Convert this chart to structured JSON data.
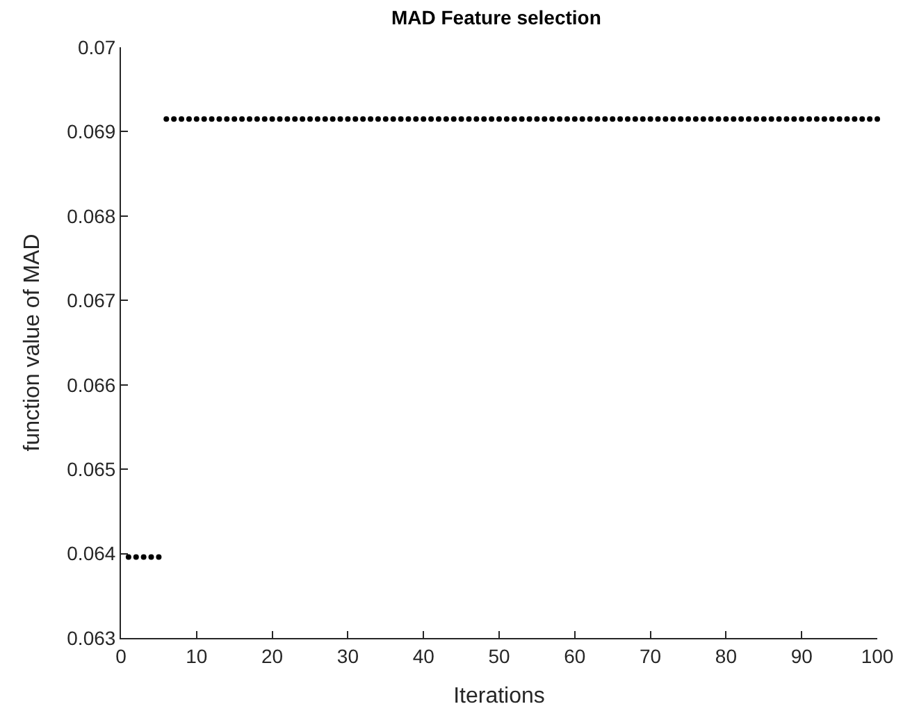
{
  "chart_data": {
    "type": "scatter",
    "title": "MAD Feature selection",
    "xlabel": "Iterations",
    "ylabel": "function value of MAD",
    "x": [
      1,
      2,
      3,
      4,
      5,
      6,
      7,
      8,
      9,
      10,
      11,
      12,
      13,
      14,
      15,
      16,
      17,
      18,
      19,
      20,
      21,
      22,
      23,
      24,
      25,
      26,
      27,
      28,
      29,
      30,
      31,
      32,
      33,
      34,
      35,
      36,
      37,
      38,
      39,
      40,
      41,
      42,
      43,
      44,
      45,
      46,
      47,
      48,
      49,
      50,
      51,
      52,
      53,
      54,
      55,
      56,
      57,
      58,
      59,
      60,
      61,
      62,
      63,
      64,
      65,
      66,
      67,
      68,
      69,
      70,
      71,
      72,
      73,
      74,
      75,
      76,
      77,
      78,
      79,
      80,
      81,
      82,
      83,
      84,
      85,
      86,
      87,
      88,
      89,
      90,
      91,
      92,
      93,
      94,
      95,
      96,
      97,
      98,
      99,
      100
    ],
    "series": [
      {
        "color": "#000000",
        "values": [
          0.06396,
          0.06396,
          0.06396,
          0.06396,
          0.06396,
          0.06915,
          0.06915,
          0.06915,
          0.06915,
          0.06915,
          0.06915,
          0.06915,
          0.06915,
          0.06915,
          0.06915,
          0.06915,
          0.06915,
          0.06915,
          0.06915,
          0.06915,
          0.06915,
          0.06915,
          0.06915,
          0.06915,
          0.06915,
          0.06915,
          0.06915,
          0.06915,
          0.06915,
          0.06915,
          0.06915,
          0.06915,
          0.06915,
          0.06915,
          0.06915,
          0.06915,
          0.06915,
          0.06915,
          0.06915,
          0.06915,
          0.06915,
          0.06915,
          0.06915,
          0.06915,
          0.06915,
          0.06915,
          0.06915,
          0.06915,
          0.06915,
          0.06915,
          0.06915,
          0.06915,
          0.06915,
          0.06915,
          0.06915,
          0.06915,
          0.06915,
          0.06915,
          0.06915,
          0.06915,
          0.06915,
          0.06915,
          0.06915,
          0.06915,
          0.06915,
          0.06915,
          0.06915,
          0.06915,
          0.06915,
          0.06915,
          0.06915,
          0.06915,
          0.06915,
          0.06915,
          0.06915,
          0.06915,
          0.06915,
          0.06915,
          0.06915,
          0.06915,
          0.06915,
          0.06915,
          0.06915,
          0.06915,
          0.06915,
          0.06915,
          0.06915,
          0.06915,
          0.06915,
          0.06915,
          0.06915,
          0.06915,
          0.06915,
          0.06915,
          0.06915,
          0.06915,
          0.06915,
          0.06915,
          0.06915,
          0.06915
        ]
      }
    ],
    "xlim": [
      0,
      100
    ],
    "xticks": [
      0,
      10,
      20,
      30,
      40,
      50,
      60,
      70,
      80,
      90,
      100
    ],
    "ylim": [
      0.063,
      0.07
    ],
    "yticks": [
      0.063,
      0.064,
      0.065,
      0.066,
      0.067,
      0.068,
      0.069,
      0.07
    ],
    "marker": "circle"
  }
}
